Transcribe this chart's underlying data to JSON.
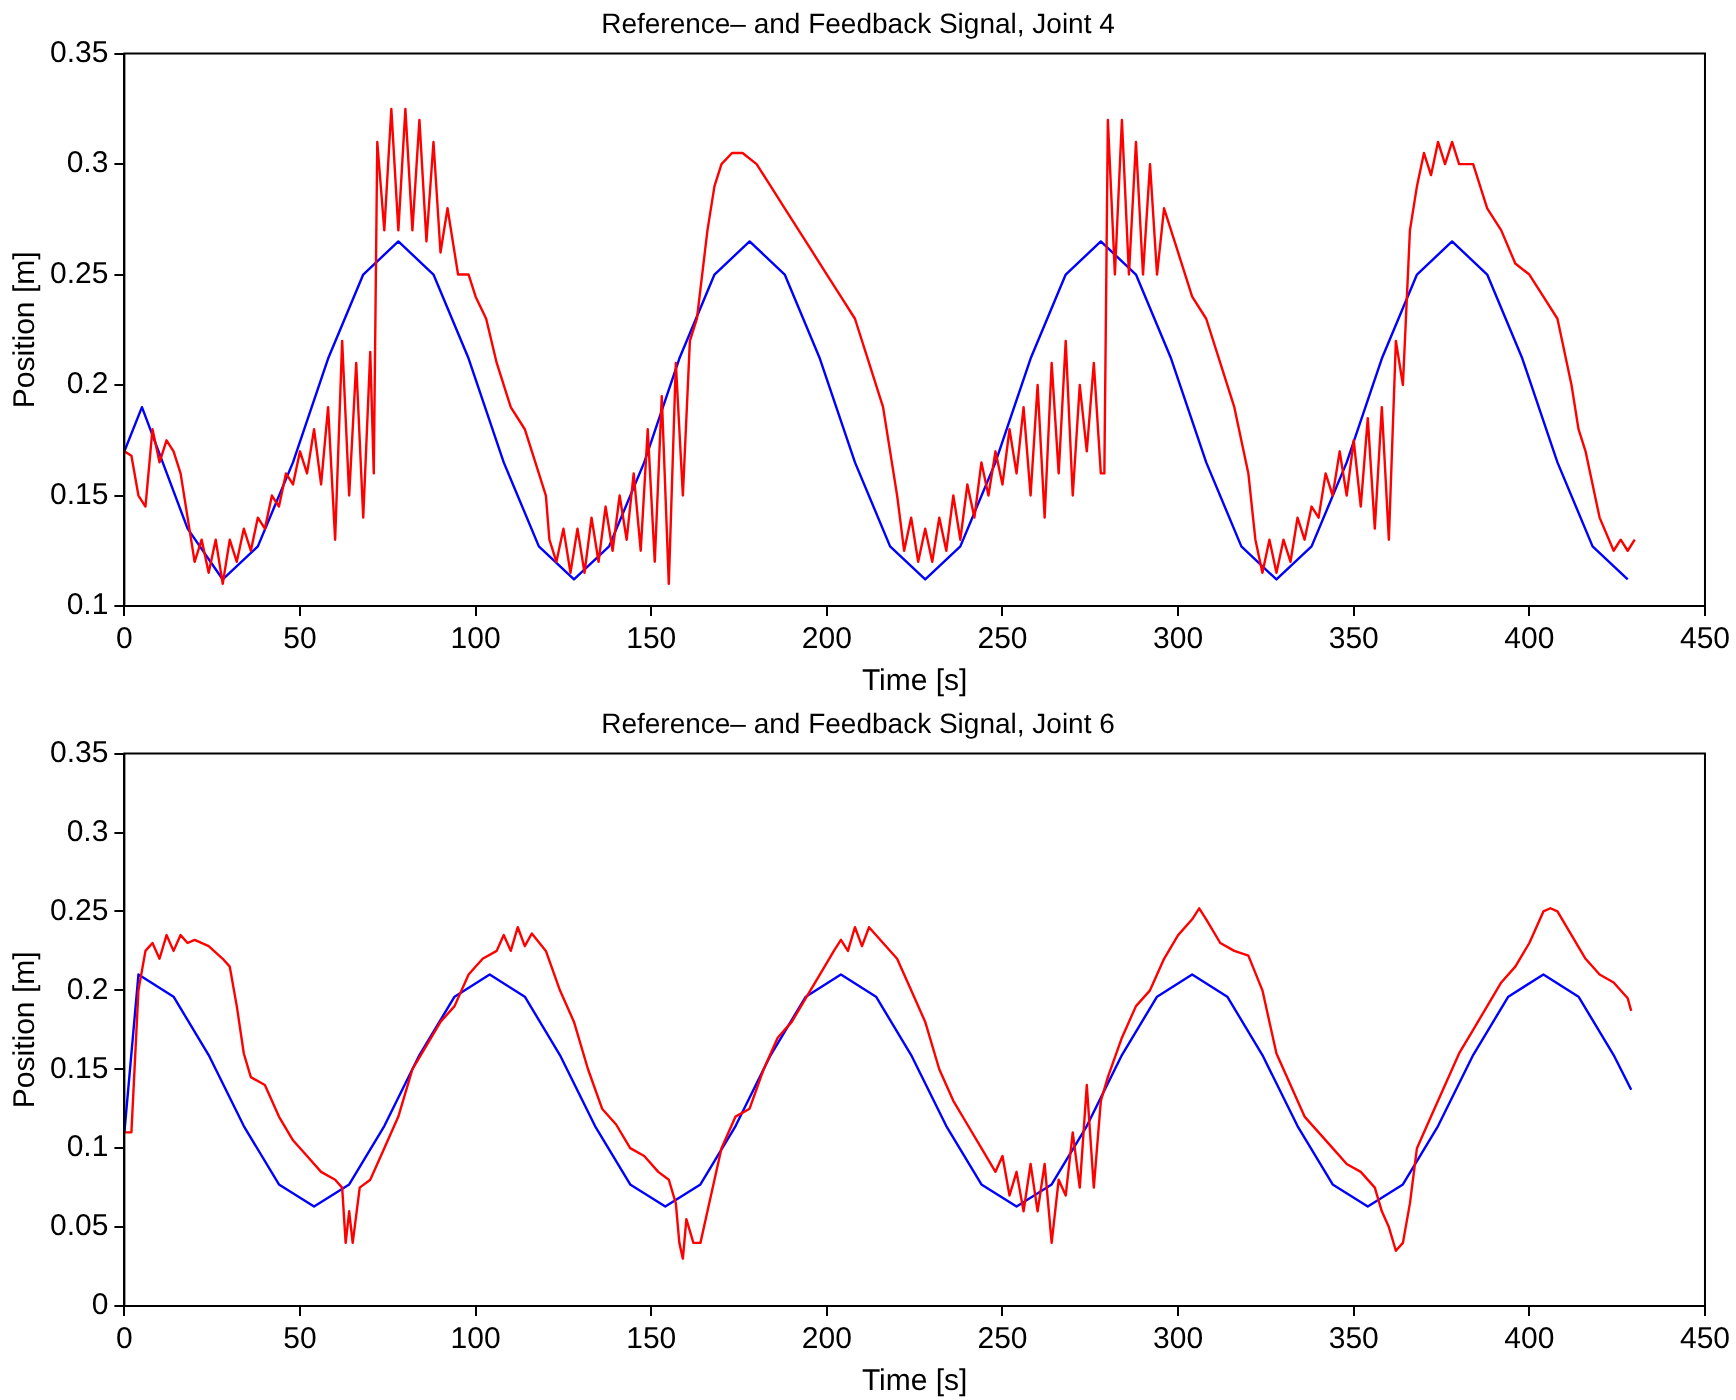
{
  "chart_data": [
    {
      "type": "line",
      "title": "Reference– and Feedback Signal, Joint 4",
      "xlabel": "Time [s]",
      "ylabel": "Position [m]",
      "xlim": [
        0,
        450
      ],
      "ylim": [
        0.1,
        0.35
      ],
      "xticks": [
        0,
        50,
        100,
        150,
        200,
        250,
        300,
        350,
        400,
        450
      ],
      "yticks": [
        0.1,
        0.15,
        0.2,
        0.25,
        0.3,
        0.35
      ],
      "grid": false,
      "legend": false,
      "marker": "none",
      "line_style": "solid",
      "series": [
        {
          "color": "#ff0000",
          "x": [
            0,
            2,
            4,
            6,
            8,
            10,
            12,
            14,
            16,
            18,
            20,
            22,
            24,
            26,
            28,
            30,
            32,
            34,
            36,
            38,
            40,
            42,
            44,
            46,
            48,
            50,
            52,
            54,
            56,
            58,
            60,
            62,
            64,
            66,
            68,
            70,
            71,
            72,
            74,
            76,
            78,
            80,
            82,
            84,
            86,
            88,
            90,
            92,
            95,
            98,
            100,
            103,
            106,
            110,
            114,
            118,
            120,
            121,
            123,
            125,
            127,
            129,
            131,
            133,
            135,
            137,
            139,
            141,
            143,
            145,
            147,
            149,
            151,
            153,
            155,
            157,
            159,
            161,
            163,
            166,
            168,
            170,
            173,
            176,
            180,
            184,
            188,
            192,
            196,
            200,
            204,
            208,
            212,
            216,
            218,
            220,
            222,
            224,
            226,
            228,
            230,
            232,
            234,
            236,
            238,
            240,
            242,
            244,
            246,
            248,
            250,
            252,
            254,
            256,
            258,
            260,
            262,
            264,
            266,
            268,
            270,
            272,
            274,
            276,
            278,
            279,
            280,
            282,
            284,
            286,
            288,
            290,
            292,
            294,
            296,
            300,
            304,
            308,
            312,
            316,
            320,
            322,
            324,
            326,
            328,
            330,
            332,
            334,
            336,
            338,
            340,
            342,
            344,
            346,
            348,
            350,
            352,
            354,
            356,
            358,
            360,
            362,
            364,
            366,
            368,
            370,
            372,
            374,
            376,
            378,
            380,
            384,
            388,
            392,
            396,
            400,
            404,
            408,
            412,
            414,
            416,
            420,
            424,
            426,
            428,
            430
          ],
          "values": [
            0.17,
            0.168,
            0.15,
            0.145,
            0.18,
            0.165,
            0.175,
            0.17,
            0.16,
            0.14,
            0.12,
            0.13,
            0.115,
            0.13,
            0.11,
            0.13,
            0.12,
            0.135,
            0.125,
            0.14,
            0.135,
            0.15,
            0.145,
            0.16,
            0.155,
            0.17,
            0.16,
            0.18,
            0.155,
            0.19,
            0.13,
            0.22,
            0.15,
            0.21,
            0.14,
            0.215,
            0.16,
            0.31,
            0.27,
            0.325,
            0.27,
            0.325,
            0.27,
            0.32,
            0.265,
            0.31,
            0.26,
            0.28,
            0.25,
            0.25,
            0.24,
            0.23,
            0.21,
            0.19,
            0.18,
            0.16,
            0.15,
            0.13,
            0.12,
            0.135,
            0.115,
            0.135,
            0.115,
            0.14,
            0.12,
            0.145,
            0.125,
            0.15,
            0.13,
            0.16,
            0.125,
            0.18,
            0.12,
            0.195,
            0.11,
            0.21,
            0.15,
            0.22,
            0.23,
            0.27,
            0.29,
            0.3,
            0.305,
            0.305,
            0.3,
            0.29,
            0.28,
            0.27,
            0.26,
            0.25,
            0.24,
            0.23,
            0.21,
            0.19,
            0.17,
            0.15,
            0.125,
            0.14,
            0.12,
            0.135,
            0.12,
            0.14,
            0.125,
            0.15,
            0.13,
            0.155,
            0.14,
            0.165,
            0.15,
            0.17,
            0.155,
            0.18,
            0.16,
            0.19,
            0.15,
            0.2,
            0.14,
            0.21,
            0.16,
            0.22,
            0.15,
            0.2,
            0.17,
            0.21,
            0.16,
            0.16,
            0.32,
            0.25,
            0.32,
            0.25,
            0.31,
            0.25,
            0.3,
            0.25,
            0.28,
            0.26,
            0.24,
            0.23,
            0.21,
            0.19,
            0.16,
            0.13,
            0.115,
            0.13,
            0.115,
            0.13,
            0.12,
            0.14,
            0.13,
            0.145,
            0.14,
            0.16,
            0.15,
            0.17,
            0.15,
            0.175,
            0.145,
            0.185,
            0.135,
            0.19,
            0.13,
            0.22,
            0.2,
            0.27,
            0.29,
            0.305,
            0.295,
            0.31,
            0.3,
            0.31,
            0.3,
            0.3,
            0.28,
            0.27,
            0.255,
            0.25,
            0.24,
            0.23,
            0.2,
            0.18,
            0.17,
            0.14,
            0.125,
            0.13,
            0.125,
            0.13
          ]
        },
        {
          "color": "#0000ff",
          "x": [
            0,
            5,
            18,
            28,
            38,
            48,
            58,
            68,
            78,
            88,
            98,
            108,
            118,
            128,
            138,
            148,
            158,
            168,
            178,
            188,
            198,
            208,
            218,
            228,
            238,
            248,
            258,
            268,
            278,
            288,
            298,
            308,
            318,
            328,
            338,
            348,
            358,
            368,
            378,
            388,
            398,
            408,
            418,
            428
          ],
          "values": [
            0.17,
            0.19,
            0.135,
            0.112,
            0.127,
            0.165,
            0.212,
            0.25,
            0.265,
            0.25,
            0.212,
            0.165,
            0.127,
            0.112,
            0.127,
            0.165,
            0.212,
            0.25,
            0.265,
            0.25,
            0.212,
            0.165,
            0.127,
            0.112,
            0.127,
            0.165,
            0.212,
            0.25,
            0.265,
            0.25,
            0.212,
            0.165,
            0.127,
            0.112,
            0.127,
            0.165,
            0.212,
            0.25,
            0.265,
            0.25,
            0.212,
            0.165,
            0.127,
            0.112
          ]
        }
      ]
    },
    {
      "type": "line",
      "title": "Reference– and Feedback Signal, Joint 6",
      "xlabel": "Time [s]",
      "ylabel": "Position [m]",
      "xlim": [
        0,
        450
      ],
      "ylim": [
        0,
        0.35
      ],
      "xticks": [
        0,
        50,
        100,
        150,
        200,
        250,
        300,
        350,
        400,
        450
      ],
      "yticks": [
        0,
        0.05,
        0.1,
        0.15,
        0.2,
        0.25,
        0.3,
        0.35
      ],
      "grid": false,
      "legend": false,
      "marker": "none",
      "line_style": "solid",
      "series": [
        {
          "color": "#ff0000",
          "x": [
            0,
            2,
            4,
            6,
            8,
            10,
            12,
            14,
            16,
            18,
            20,
            24,
            28,
            30,
            32,
            34,
            36,
            40,
            44,
            48,
            52,
            56,
            60,
            62,
            63,
            64,
            65,
            67,
            70,
            74,
            78,
            82,
            86,
            90,
            94,
            98,
            102,
            106,
            108,
            110,
            112,
            114,
            116,
            120,
            124,
            128,
            132,
            136,
            140,
            144,
            148,
            152,
            155,
            157,
            158,
            159,
            160,
            162,
            164,
            166,
            168,
            170,
            174,
            178,
            182,
            186,
            190,
            194,
            198,
            202,
            204,
            206,
            208,
            210,
            212,
            216,
            220,
            224,
            228,
            232,
            236,
            240,
            244,
            248,
            250,
            252,
            254,
            256,
            258,
            260,
            262,
            264,
            266,
            268,
            270,
            272,
            274,
            276,
            278,
            280,
            284,
            288,
            292,
            296,
            300,
            304,
            306,
            308,
            312,
            316,
            320,
            324,
            328,
            332,
            336,
            340,
            344,
            348,
            352,
            356,
            358,
            360,
            362,
            364,
            366,
            368,
            372,
            376,
            380,
            384,
            388,
            392,
            396,
            400,
            404,
            406,
            408,
            412,
            416,
            420,
            424,
            428,
            429
          ],
          "values": [
            0.11,
            0.11,
            0.2,
            0.225,
            0.23,
            0.22,
            0.235,
            0.225,
            0.235,
            0.23,
            0.232,
            0.228,
            0.22,
            0.215,
            0.19,
            0.16,
            0.145,
            0.14,
            0.12,
            0.105,
            0.095,
            0.085,
            0.08,
            0.075,
            0.04,
            0.06,
            0.04,
            0.075,
            0.08,
            0.1,
            0.12,
            0.15,
            0.165,
            0.18,
            0.19,
            0.21,
            0.22,
            0.225,
            0.235,
            0.225,
            0.24,
            0.228,
            0.236,
            0.225,
            0.2,
            0.18,
            0.15,
            0.125,
            0.115,
            0.1,
            0.095,
            0.085,
            0.08,
            0.065,
            0.04,
            0.03,
            0.055,
            0.04,
            0.04,
            0.06,
            0.08,
            0.1,
            0.12,
            0.125,
            0.15,
            0.17,
            0.18,
            0.195,
            0.21,
            0.225,
            0.232,
            0.225,
            0.24,
            0.228,
            0.24,
            0.23,
            0.22,
            0.2,
            0.18,
            0.15,
            0.13,
            0.115,
            0.1,
            0.085,
            0.095,
            0.07,
            0.085,
            0.06,
            0.09,
            0.06,
            0.09,
            0.04,
            0.08,
            0.07,
            0.11,
            0.075,
            0.14,
            0.075,
            0.13,
            0.145,
            0.17,
            0.19,
            0.2,
            0.22,
            0.235,
            0.245,
            0.252,
            0.245,
            0.23,
            0.225,
            0.222,
            0.2,
            0.16,
            0.14,
            0.12,
            0.11,
            0.1,
            0.09,
            0.085,
            0.075,
            0.06,
            0.05,
            0.035,
            0.04,
            0.065,
            0.1,
            0.12,
            0.14,
            0.16,
            0.175,
            0.19,
            0.205,
            0.215,
            0.23,
            0.25,
            0.252,
            0.25,
            0.235,
            0.22,
            0.21,
            0.205,
            0.195,
            0.187
          ]
        },
        {
          "color": "#0000ff",
          "x": [
            0,
            4,
            14,
            24,
            34,
            44,
            54,
            64,
            74,
            84,
            94,
            104,
            114,
            124,
            134,
            144,
            154,
            164,
            174,
            184,
            194,
            204,
            214,
            224,
            234,
            244,
            254,
            264,
            274,
            284,
            294,
            304,
            314,
            324,
            334,
            344,
            354,
            364,
            374,
            384,
            394,
            404,
            414,
            424,
            429
          ],
          "values": [
            0.11,
            0.21,
            0.196,
            0.159,
            0.114,
            0.077,
            0.063,
            0.077,
            0.114,
            0.159,
            0.196,
            0.21,
            0.196,
            0.159,
            0.114,
            0.077,
            0.063,
            0.077,
            0.114,
            0.159,
            0.196,
            0.21,
            0.196,
            0.159,
            0.114,
            0.077,
            0.063,
            0.077,
            0.114,
            0.159,
            0.196,
            0.21,
            0.196,
            0.159,
            0.114,
            0.077,
            0.063,
            0.077,
            0.114,
            0.159,
            0.196,
            0.21,
            0.196,
            0.159,
            0.137
          ]
        }
      ]
    }
  ]
}
